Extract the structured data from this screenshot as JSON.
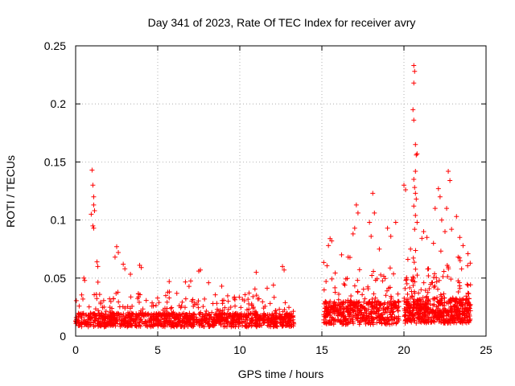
{
  "chart_data": {
    "type": "scatter",
    "title": "Day 341 of 2023, Rate Of TEC Index for receiver avry",
    "xlabel": "GPS time / hours",
    "ylabel": "ROTI / TECUs",
    "xlim": [
      0,
      25
    ],
    "ylim": [
      0,
      0.25
    ],
    "x_ticks": [
      0,
      5,
      10,
      15,
      20,
      25
    ],
    "y_ticks": [
      0,
      0.05,
      0.1,
      0.15,
      0.2,
      0.25
    ],
    "x_tick_labels": [
      "0",
      "5",
      "10",
      "15",
      "20",
      "25"
    ],
    "y_tick_labels": [
      "0",
      "0.05",
      "0.1",
      "0.15",
      "0.2",
      "0.25"
    ],
    "grid": true,
    "marker": "+",
    "color": "#ff0000",
    "series": [
      {
        "name": "ROTI",
        "segments": [
          {
            "x_start": 0.0,
            "x_end": 13.3,
            "base": 0.014,
            "spread": 0.012,
            "density": 90
          },
          {
            "x_start": 15.1,
            "x_end": 19.7,
            "base": 0.02,
            "spread": 0.02,
            "density": 110
          },
          {
            "x_start": 20.0,
            "x_end": 24.1,
            "base": 0.022,
            "spread": 0.022,
            "density": 140
          }
        ],
        "points": [
          [
            1.0,
            0.143
          ],
          [
            1.05,
            0.13
          ],
          [
            1.1,
            0.12
          ],
          [
            1.1,
            0.113
          ],
          [
            1.15,
            0.108
          ],
          [
            1.05,
            0.095
          ],
          [
            1.1,
            0.093
          ],
          [
            0.95,
            0.105
          ],
          [
            2.5,
            0.077
          ],
          [
            2.6,
            0.072
          ],
          [
            2.4,
            0.068
          ],
          [
            2.9,
            0.062
          ],
          [
            3.0,
            0.058
          ],
          [
            1.3,
            0.064
          ],
          [
            1.35,
            0.06
          ],
          [
            0.5,
            0.05
          ],
          [
            0.55,
            0.048
          ],
          [
            3.9,
            0.061
          ],
          [
            4.0,
            0.059
          ],
          [
            5.7,
            0.047
          ],
          [
            7.5,
            0.056
          ],
          [
            7.6,
            0.057
          ],
          [
            8.1,
            0.046
          ],
          [
            8.9,
            0.043
          ],
          [
            11.0,
            0.055
          ],
          [
            12.6,
            0.06
          ],
          [
            12.7,
            0.057
          ],
          [
            15.5,
            0.084
          ],
          [
            15.6,
            0.082
          ],
          [
            15.4,
            0.078
          ],
          [
            16.2,
            0.07
          ],
          [
            16.6,
            0.068
          ],
          [
            17.1,
            0.113
          ],
          [
            17.2,
            0.106
          ],
          [
            17.0,
            0.093
          ],
          [
            16.9,
            0.088
          ],
          [
            17.9,
            0.098
          ],
          [
            18.1,
            0.123
          ],
          [
            18.2,
            0.106
          ],
          [
            18.0,
            0.086
          ],
          [
            18.5,
            0.075
          ],
          [
            19.0,
            0.093
          ],
          [
            19.2,
            0.086
          ],
          [
            19.5,
            0.098
          ],
          [
            20.0,
            0.13
          ],
          [
            20.1,
            0.126
          ],
          [
            20.4,
            0.075
          ],
          [
            20.6,
            0.233
          ],
          [
            20.65,
            0.228
          ],
          [
            20.6,
            0.218
          ],
          [
            20.55,
            0.195
          ],
          [
            20.6,
            0.186
          ],
          [
            20.7,
            0.165
          ],
          [
            20.75,
            0.156
          ],
          [
            20.8,
            0.157
          ],
          [
            20.7,
            0.142
          ],
          [
            20.6,
            0.135
          ],
          [
            20.65,
            0.128
          ],
          [
            20.7,
            0.123
          ],
          [
            20.75,
            0.118
          ],
          [
            20.6,
            0.112
          ],
          [
            20.7,
            0.104
          ],
          [
            20.8,
            0.098
          ],
          [
            20.65,
            0.092
          ],
          [
            21.2,
            0.09
          ],
          [
            21.4,
            0.085
          ],
          [
            21.8,
            0.08
          ],
          [
            22.1,
            0.127
          ],
          [
            22.2,
            0.12
          ],
          [
            21.9,
            0.11
          ],
          [
            22.3,
            0.1
          ],
          [
            22.5,
            0.09
          ],
          [
            22.7,
            0.142
          ],
          [
            22.8,
            0.134
          ],
          [
            22.6,
            0.11
          ],
          [
            22.9,
            0.092
          ],
          [
            23.2,
            0.103
          ],
          [
            23.4,
            0.085
          ],
          [
            23.6,
            0.078
          ],
          [
            23.9,
            0.071
          ],
          [
            23.3,
            0.068
          ]
        ]
      }
    ]
  }
}
